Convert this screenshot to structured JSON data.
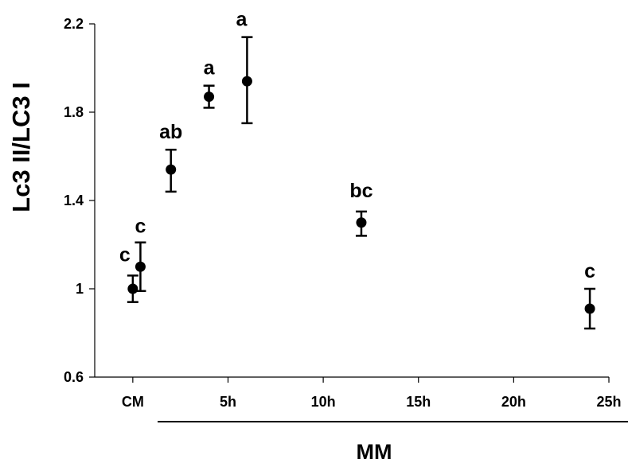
{
  "chart_data": {
    "type": "scatter",
    "title": "",
    "ylabel": "Lc3 II/LC3 I",
    "xgroup_label": "MM",
    "ylim": [
      0.6,
      2.2
    ],
    "xlim": [
      -2,
      25
    ],
    "yticks": [
      0.6,
      1,
      1.4,
      1.8,
      2.2
    ],
    "ytick_labels": [
      "0.6",
      "1",
      "1.4",
      "1.8",
      "2.2"
    ],
    "xticks": [
      0,
      5,
      10,
      15,
      20,
      25
    ],
    "xtick_labels": [
      "CM",
      "5h",
      "10h",
      "15h",
      "20h",
      "25h"
    ],
    "grid": false,
    "points": [
      {
        "x": 0,
        "y": 1.0,
        "err_low": 0.94,
        "err_high": 1.06,
        "label": "c"
      },
      {
        "x": 0.4,
        "y": 1.1,
        "err_low": 0.99,
        "err_high": 1.21,
        "label": "c"
      },
      {
        "x": 2,
        "y": 1.54,
        "err_low": 1.44,
        "err_high": 1.63,
        "label": "ab"
      },
      {
        "x": 4,
        "y": 1.87,
        "err_low": 1.82,
        "err_high": 1.92,
        "label": "a"
      },
      {
        "x": 6,
        "y": 1.94,
        "err_low": 1.75,
        "err_high": 2.14,
        "label": "a"
      },
      {
        "x": 12,
        "y": 1.3,
        "err_low": 1.24,
        "err_high": 1.35,
        "label": "bc"
      },
      {
        "x": 24,
        "y": 0.91,
        "err_low": 0.82,
        "err_high": 1.0,
        "label": "c"
      }
    ]
  }
}
